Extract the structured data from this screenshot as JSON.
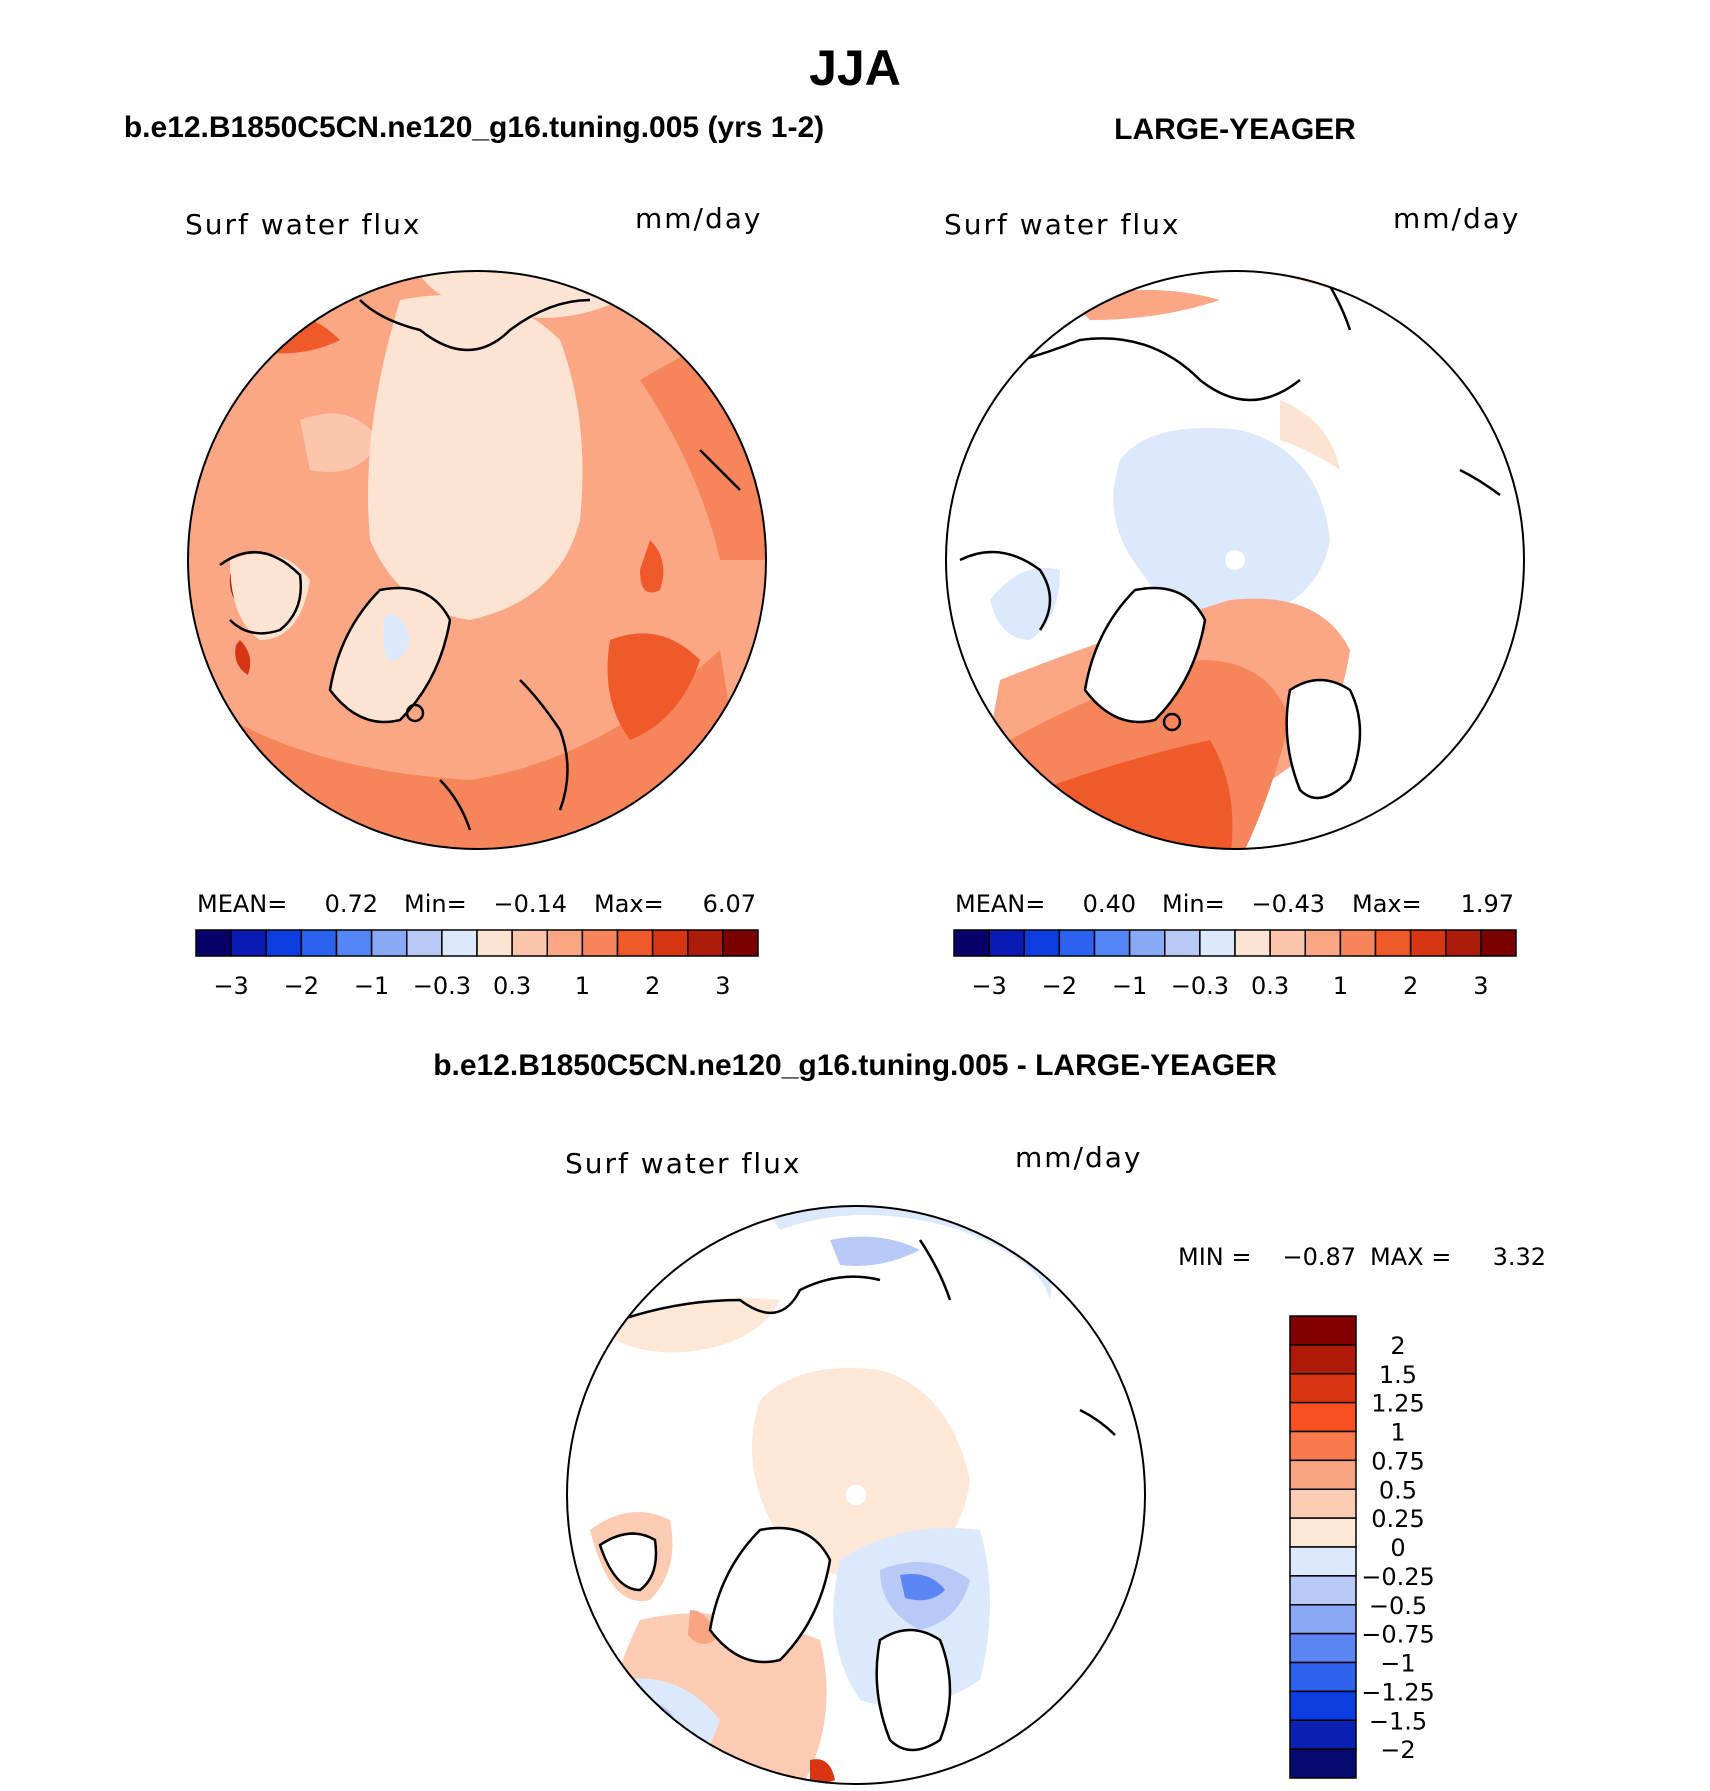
{
  "page_title": "JJA",
  "colors": {
    "land": "#ffffff",
    "outline": "#000000",
    "c_e8": "#fde3d2",
    "c_e9": "#fcc6ad",
    "c_e10": "#fba684",
    "c_e11": "#f7855c",
    "c_e12": "#f05a2b"
  },
  "chart_data": [
    {
      "id": "model",
      "type": "polar_contour_map",
      "title": "b.e12.B1850C5CN.ne120_g16.tuning.005 (yrs 1-2)",
      "field": "Surf water flux",
      "units": "mm/day",
      "stats": {
        "mean_label": "MEAN=",
        "mean": "0.72",
        "min_label": "Min=",
        "min": "−0.14",
        "max_label": "Max=",
        "max": "6.07"
      },
      "colorbar": {
        "colors": [
          "#08006a",
          "#0a1bb5",
          "#0b3de0",
          "#2b62ef",
          "#5486f5",
          "#89a8f6",
          "#b8c9f8",
          "#dce8fb",
          "#fde3d2",
          "#fcc6ad",
          "#fba684",
          "#f7855c",
          "#f05a2b",
          "#d63614",
          "#ab1d0a",
          "#7a0000"
        ],
        "tick_labels": [
          "−3",
          "−2",
          "−1",
          "−0.3",
          "0.3",
          "1",
          "2",
          "3"
        ],
        "tick_after_index": [
          0,
          2,
          4,
          6,
          8,
          10,
          12,
          14
        ]
      }
    },
    {
      "id": "obs",
      "type": "polar_contour_map",
      "title": "LARGE-YEAGER",
      "field": "Surf water flux",
      "units": "mm/day",
      "stats": {
        "mean_label": "MEAN=",
        "mean": "0.40",
        "min_label": "Min=",
        "min": "−0.43",
        "max_label": "Max=",
        "max": "1.97"
      },
      "colorbar": {
        "colors": [
          "#08006a",
          "#0a1bb5",
          "#0b3de0",
          "#2b62ef",
          "#5486f5",
          "#89a8f6",
          "#b8c9f8",
          "#dce8fb",
          "#fde3d2",
          "#fcc6ad",
          "#fba684",
          "#f7855c",
          "#f05a2b",
          "#d63614",
          "#ab1d0a",
          "#7a0000"
        ],
        "tick_labels": [
          "−3",
          "−2",
          "−1",
          "−0.3",
          "0.3",
          "1",
          "2",
          "3"
        ],
        "tick_after_index": [
          0,
          2,
          4,
          6,
          8,
          10,
          12,
          14
        ]
      }
    },
    {
      "id": "diff",
      "type": "polar_contour_map",
      "title": "b.e12.B1850C5CN.ne120_g16.tuning.005 - LARGE-YEAGER",
      "field": "Surf water flux",
      "units": "mm/day",
      "stats": {
        "min_label": "MIN =",
        "min": "−0.87",
        "max_label": "MAX =",
        "max": "3.32"
      },
      "colorbar": {
        "orientation": "vertical",
        "colors_top_to_bottom": [
          "#800000",
          "#ad1a08",
          "#d93510",
          "#f95124",
          "#f8794b",
          "#f9a584",
          "#fccbb4",
          "#fde8d8",
          "#dce8fb",
          "#b8c9f8",
          "#8aa8f6",
          "#5b85f2",
          "#2f63ee",
          "#0b3de0",
          "#0a22b0",
          "#060a70"
        ],
        "tick_labels": [
          "2",
          "1.5",
          "1.25",
          "1",
          "0.75",
          "0.5",
          "0.25",
          "0",
          "−0.25",
          "−0.5",
          "−0.75",
          "−1",
          "−1.25",
          "−1.5",
          "−2"
        ]
      }
    }
  ]
}
